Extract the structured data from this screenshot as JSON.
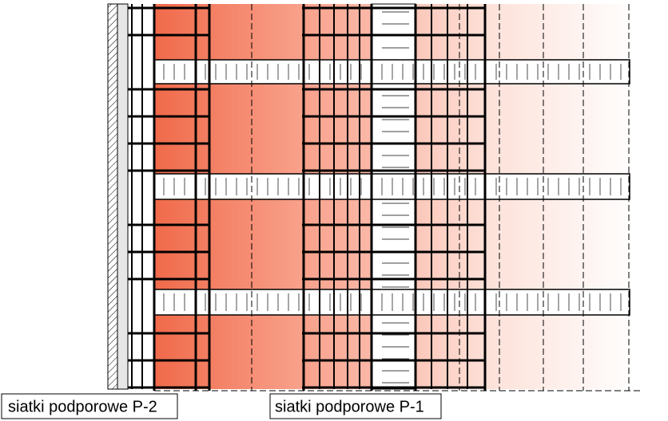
{
  "labels": {
    "p2": "siatki podporowe P-2",
    "p1": "siatki podporowe P-1"
  }
}
